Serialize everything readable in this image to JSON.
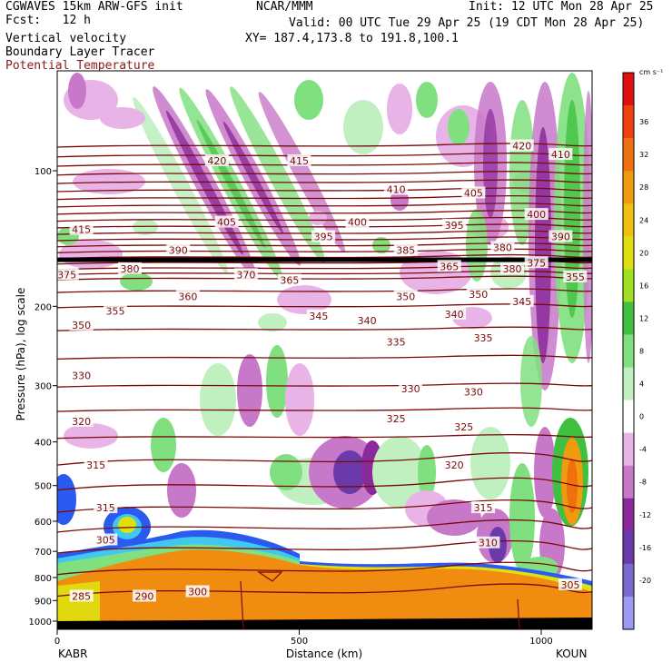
{
  "header": {
    "model": "CGWAVES 15km ARW-GFS init",
    "fcst_label": "Fcst:",
    "fcst_value": "12 h",
    "org": "NCAR/MMM",
    "init": "Init: 12 UTC Mon 28 Apr 25",
    "valid": "Valid: 00 UTC Tue 29 Apr 25 (19 CDT Mon 28 Apr 25)",
    "xy": "XY= 187.4,173.8 to 191.8,100.1",
    "fields": [
      "Vertical velocity",
      "Boundary Layer Tracer",
      "Potential Temperature"
    ]
  },
  "colors": {
    "theta_contour": "#7a0a0a",
    "terrain_fill": "#f08c10",
    "background": "#ffffff"
  },
  "chart_data": {
    "type": "heatmap",
    "title": "",
    "xlabel": "Distance (km)",
    "ylabel": "Pressure (hPa), log scale",
    "x_ticks": [
      0,
      500,
      1000
    ],
    "xlim": [
      0,
      1105
    ],
    "y_scale": "log",
    "y_ticks": [
      100,
      200,
      300,
      400,
      500,
      600,
      700,
      800,
      900,
      1000
    ],
    "ylim": [
      1000,
      60
    ],
    "endpoints": {
      "left": "KABR",
      "right": "KOUN"
    },
    "colorbar": {
      "units": "cm s⁻¹",
      "ticks": [
        36,
        32,
        28,
        24,
        20,
        16,
        12,
        8,
        4,
        0,
        -4,
        -8,
        -12,
        -16,
        -20
      ],
      "colors": [
        "#e01010",
        "#f04010",
        "#f07010",
        "#f09a10",
        "#f0c010",
        "#e0e010",
        "#a0e020",
        "#40c040",
        "#80e080",
        "#c0f0c0",
        "#ffffff",
        "#e8b4e8",
        "#c878c8",
        "#8a2a9a",
        "#6a3aaa",
        "#7a6ad0",
        "#9a9af0"
      ]
    },
    "theta_labels": [
      {
        "x": 50,
        "p": 135,
        "v": "415"
      },
      {
        "x": 330,
        "p": 95,
        "v": "420"
      },
      {
        "x": 500,
        "p": 95,
        "v": "415"
      },
      {
        "x": 960,
        "p": 88,
        "v": "420"
      },
      {
        "x": 1040,
        "p": 92,
        "v": "410"
      },
      {
        "x": 700,
        "p": 110,
        "v": "410"
      },
      {
        "x": 860,
        "p": 112,
        "v": "405"
      },
      {
        "x": 350,
        "p": 130,
        "v": "405"
      },
      {
        "x": 620,
        "p": 130,
        "v": "400"
      },
      {
        "x": 990,
        "p": 125,
        "v": "400"
      },
      {
        "x": 550,
        "p": 140,
        "v": "395"
      },
      {
        "x": 820,
        "p": 132,
        "v": "395"
      },
      {
        "x": 1040,
        "p": 140,
        "v": "390"
      },
      {
        "x": 250,
        "p": 150,
        "v": "390"
      },
      {
        "x": 720,
        "p": 150,
        "v": "385"
      },
      {
        "x": 920,
        "p": 148,
        "v": "380"
      },
      {
        "x": 990,
        "p": 160,
        "v": "375"
      },
      {
        "x": 20,
        "p": 170,
        "v": "375"
      },
      {
        "x": 150,
        "p": 165,
        "v": "380"
      },
      {
        "x": 390,
        "p": 170,
        "v": "370"
      },
      {
        "x": 480,
        "p": 175,
        "v": "365"
      },
      {
        "x": 810,
        "p": 163,
        "v": "365"
      },
      {
        "x": 940,
        "p": 165,
        "v": "380"
      },
      {
        "x": 1070,
        "p": 172,
        "v": "355"
      },
      {
        "x": 270,
        "p": 190,
        "v": "360"
      },
      {
        "x": 120,
        "p": 205,
        "v": "355"
      },
      {
        "x": 720,
        "p": 190,
        "v": "350"
      },
      {
        "x": 870,
        "p": 188,
        "v": "350"
      },
      {
        "x": 960,
        "p": 195,
        "v": "345"
      },
      {
        "x": 540,
        "p": 210,
        "v": "345"
      },
      {
        "x": 640,
        "p": 215,
        "v": "340"
      },
      {
        "x": 820,
        "p": 208,
        "v": "340"
      },
      {
        "x": 50,
        "p": 220,
        "v": "350"
      },
      {
        "x": 700,
        "p": 240,
        "v": "335"
      },
      {
        "x": 880,
        "p": 235,
        "v": "335"
      },
      {
        "x": 50,
        "p": 285,
        "v": "330"
      },
      {
        "x": 730,
        "p": 305,
        "v": "330"
      },
      {
        "x": 860,
        "p": 310,
        "v": "330"
      },
      {
        "x": 50,
        "p": 360,
        "v": "320"
      },
      {
        "x": 700,
        "p": 355,
        "v": "325"
      },
      {
        "x": 840,
        "p": 370,
        "v": "325"
      },
      {
        "x": 80,
        "p": 450,
        "v": "315"
      },
      {
        "x": 820,
        "p": 450,
        "v": "320"
      },
      {
        "x": 880,
        "p": 560,
        "v": "315"
      },
      {
        "x": 100,
        "p": 560,
        "v": "315"
      },
      {
        "x": 100,
        "p": 660,
        "v": "305"
      },
      {
        "x": 890,
        "p": 670,
        "v": "310"
      },
      {
        "x": 1060,
        "p": 830,
        "v": "305"
      },
      {
        "x": 50,
        "p": 880,
        "v": "285"
      },
      {
        "x": 180,
        "p": 880,
        "v": "290"
      },
      {
        "x": 290,
        "p": 860,
        "v": "300"
      }
    ]
  }
}
